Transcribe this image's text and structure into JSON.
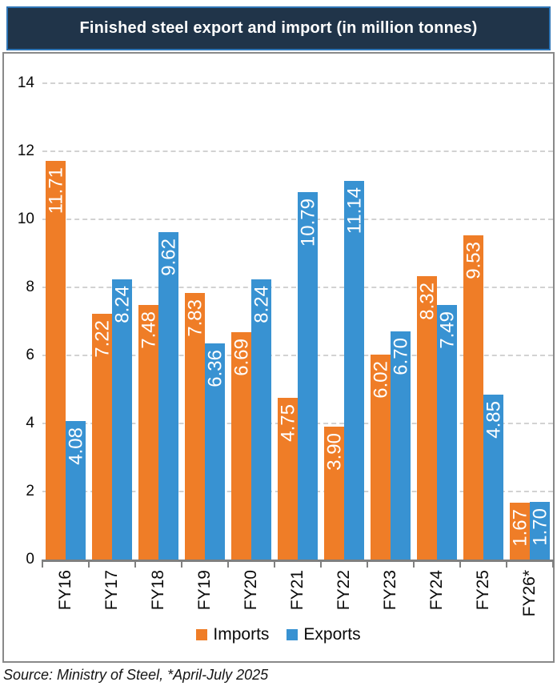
{
  "title": "Finished steel export and import (in million tonnes)",
  "source_note": "Source: Ministry of Steel, *April-July 2025",
  "legend": {
    "imports_label": "Imports",
    "exports_label": "Exports"
  },
  "chart_data": {
    "type": "bar",
    "title": "Finished steel export and import (in million tonnes)",
    "categories": [
      "FY16",
      "FY17",
      "FY18",
      "FY19",
      "FY20",
      "FY21",
      "FY22",
      "FY23",
      "FY24",
      "FY25",
      "FY26*"
    ],
    "series": [
      {
        "name": "Imports",
        "color": "#EF7D27",
        "values": [
          11.71,
          7.22,
          7.48,
          7.83,
          6.69,
          4.75,
          3.9,
          6.02,
          8.32,
          9.53,
          1.67
        ],
        "labels": [
          "11.71",
          "7.22",
          "7.48",
          "7.83",
          "6.69",
          "4.75",
          "3.90",
          "6.02",
          "8.32",
          "9.53",
          "1.67"
        ]
      },
      {
        "name": "Exports",
        "color": "#3892D2",
        "values": [
          4.08,
          8.24,
          9.62,
          6.36,
          8.24,
          10.79,
          11.14,
          6.7,
          7.49,
          4.85,
          1.7
        ],
        "labels": [
          "4.08",
          "8.24",
          "9.62",
          "6.36",
          "8.24",
          "10.79",
          "11.14",
          "6.70",
          "7.49",
          "4.85",
          "1.70"
        ]
      }
    ],
    "ylim": [
      0,
      14
    ],
    "yticks": [
      0,
      2,
      4,
      6,
      8,
      10,
      12,
      14
    ],
    "ylabel": "",
    "xlabel": "",
    "grid": "horizontal-dashed",
    "legend_position": "bottom",
    "value_labels": "inside-end, rotated 90deg bottom-to-top, white",
    "x_tick_label_rotation": "90deg bottom-to-top"
  },
  "theme": {
    "title_bg": "#203449",
    "title_border": "#2E75B6",
    "box_border": "#898989",
    "axis_color": "#7F7F7F",
    "grid_color": "#D2D2D2",
    "imports_color": "#EF7D27",
    "exports_color": "#3892D2"
  }
}
